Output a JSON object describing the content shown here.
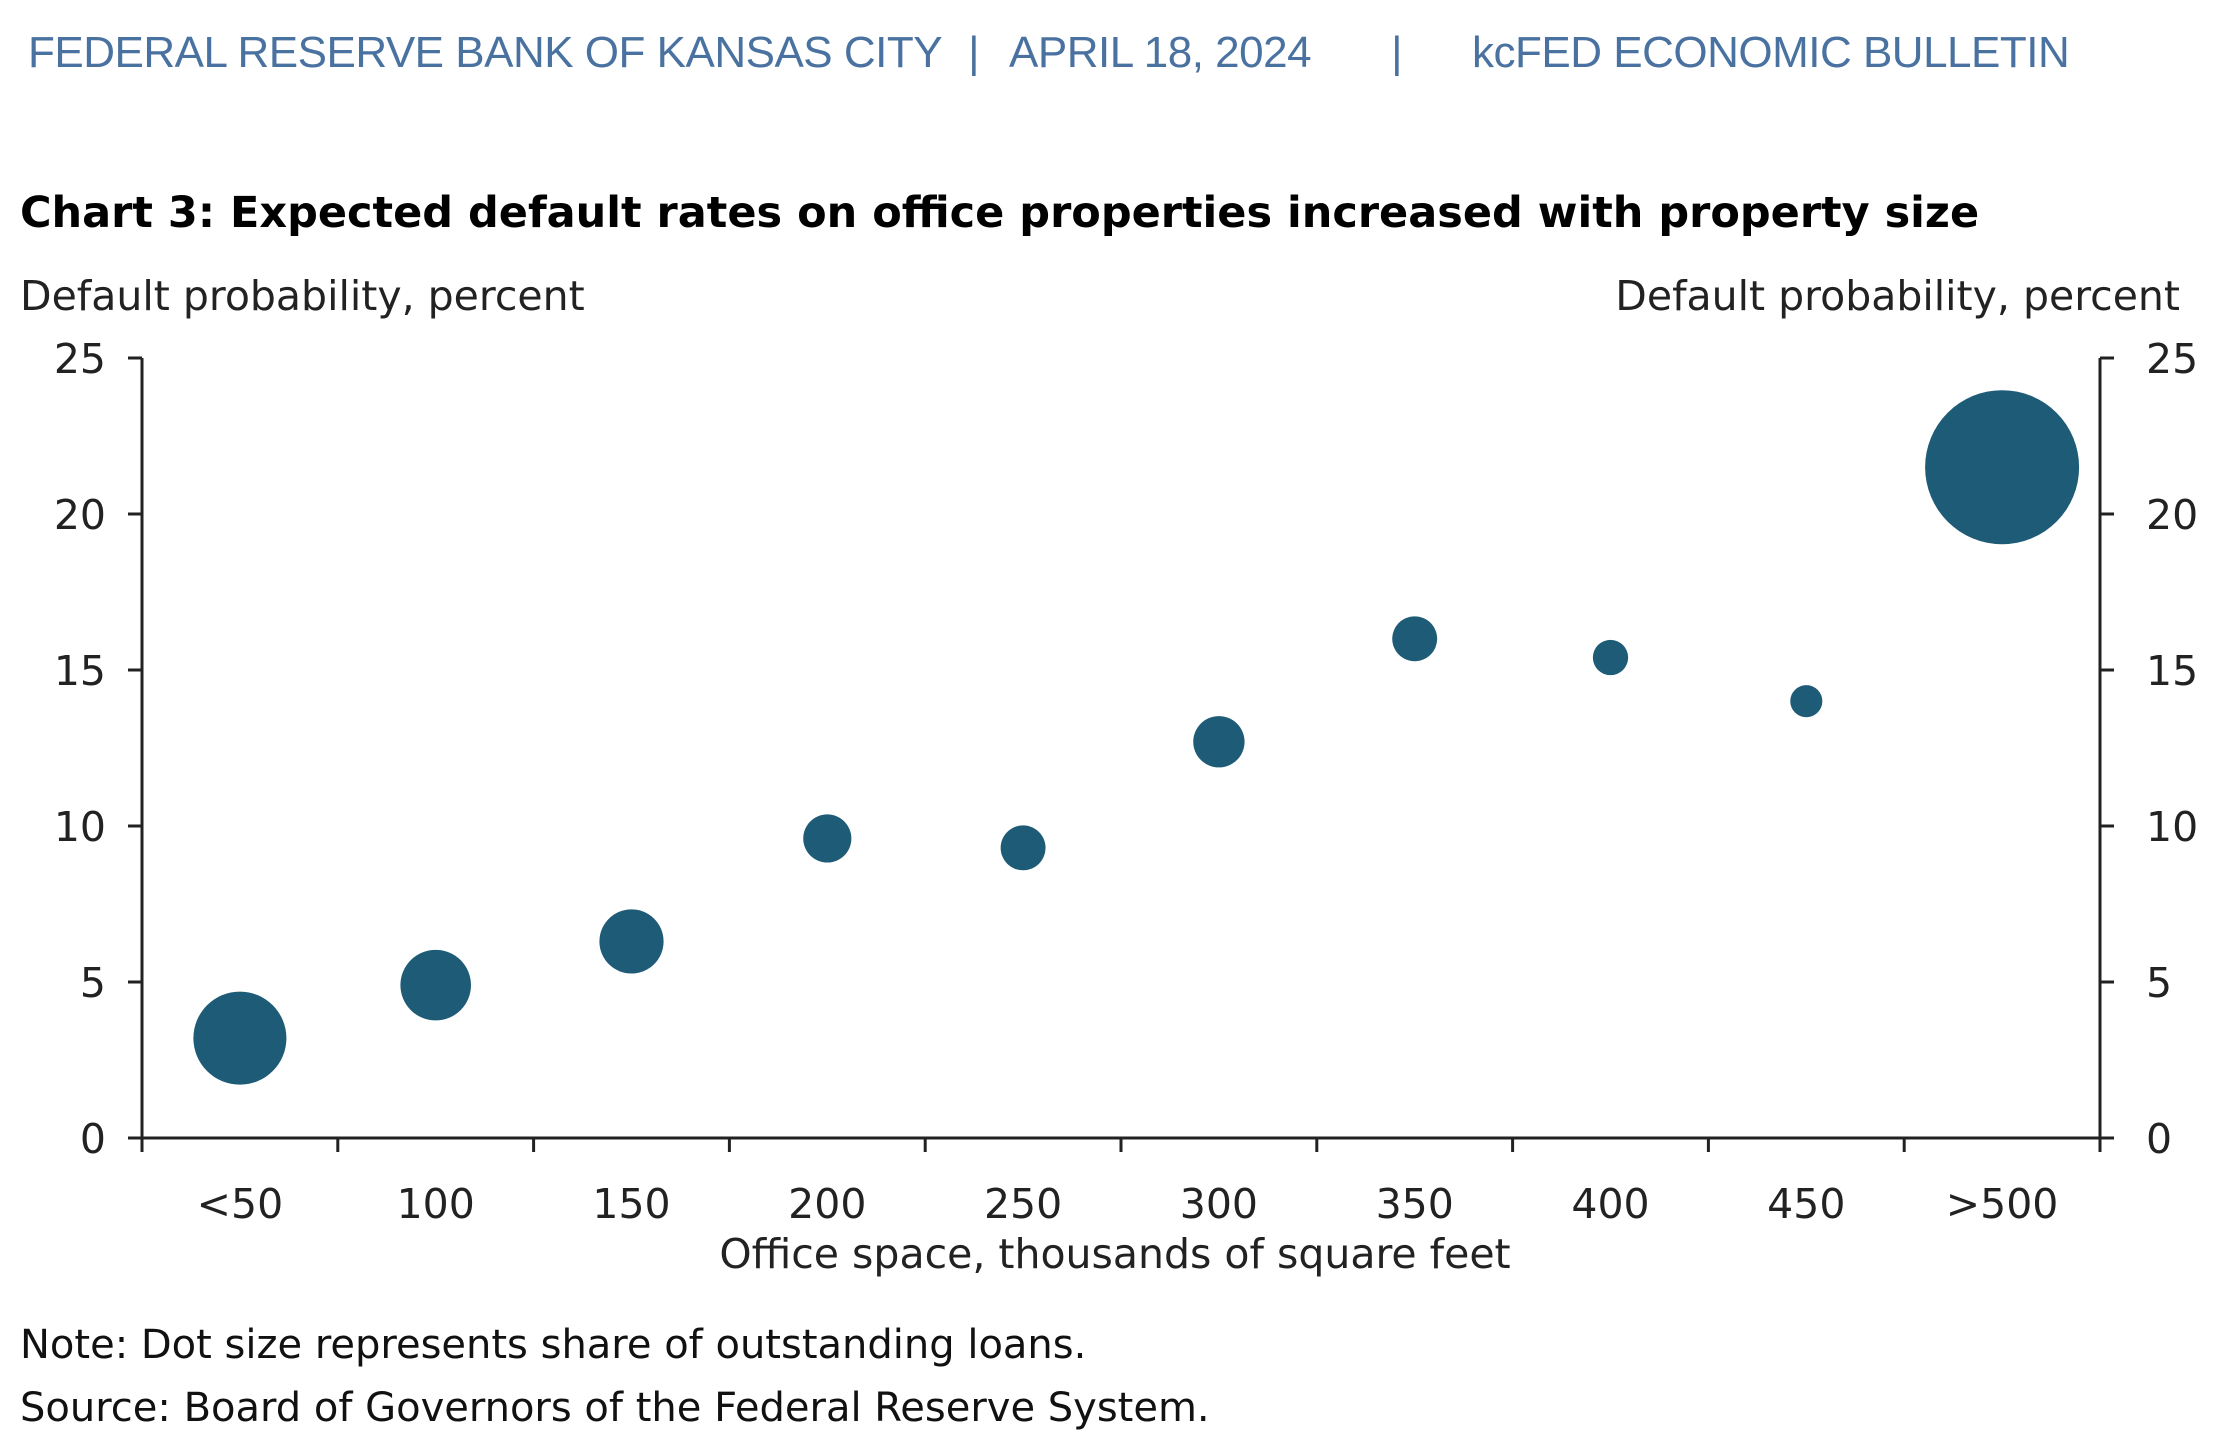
{
  "header": {
    "organization": "FEDERAL RESERVE BANK OF KANSAS CITY",
    "separator": "|",
    "date": "APRIL 18, 2024",
    "publication": "kcFED ECONOMIC BULLETIN"
  },
  "chart_data": {
    "type": "scatter",
    "title": "Chart 3: Expected default rates on office properties increased with property size",
    "ylabel_left": "Default probability, percent",
    "ylabel_right": "Default probability, percent",
    "xlabel": "Office space, thousands of square feet",
    "ylim": [
      0,
      25
    ],
    "yticks": [
      0,
      5,
      10,
      15,
      20,
      25
    ],
    "yticks_right": [
      0,
      5,
      10,
      15,
      20,
      25
    ],
    "categories": [
      "<50",
      "100",
      "150",
      "200",
      "250",
      "300",
      "350",
      "400",
      "450",
      ">500"
    ],
    "values": [
      3.2,
      4.9,
      6.3,
      9.6,
      9.3,
      12.7,
      16.0,
      15.4,
      14.0,
      21.5
    ],
    "relative_size": [
      0.29,
      0.22,
      0.2,
      0.15,
      0.14,
      0.16,
      0.14,
      0.11,
      0.1,
      0.48
    ],
    "color": "#1e5b77",
    "legend": "none",
    "grid": false
  },
  "notes": {
    "note": "Note: Dot size represents share of outstanding loans.",
    "source": "Source: Board of Governors of the Federal Reserve System."
  }
}
